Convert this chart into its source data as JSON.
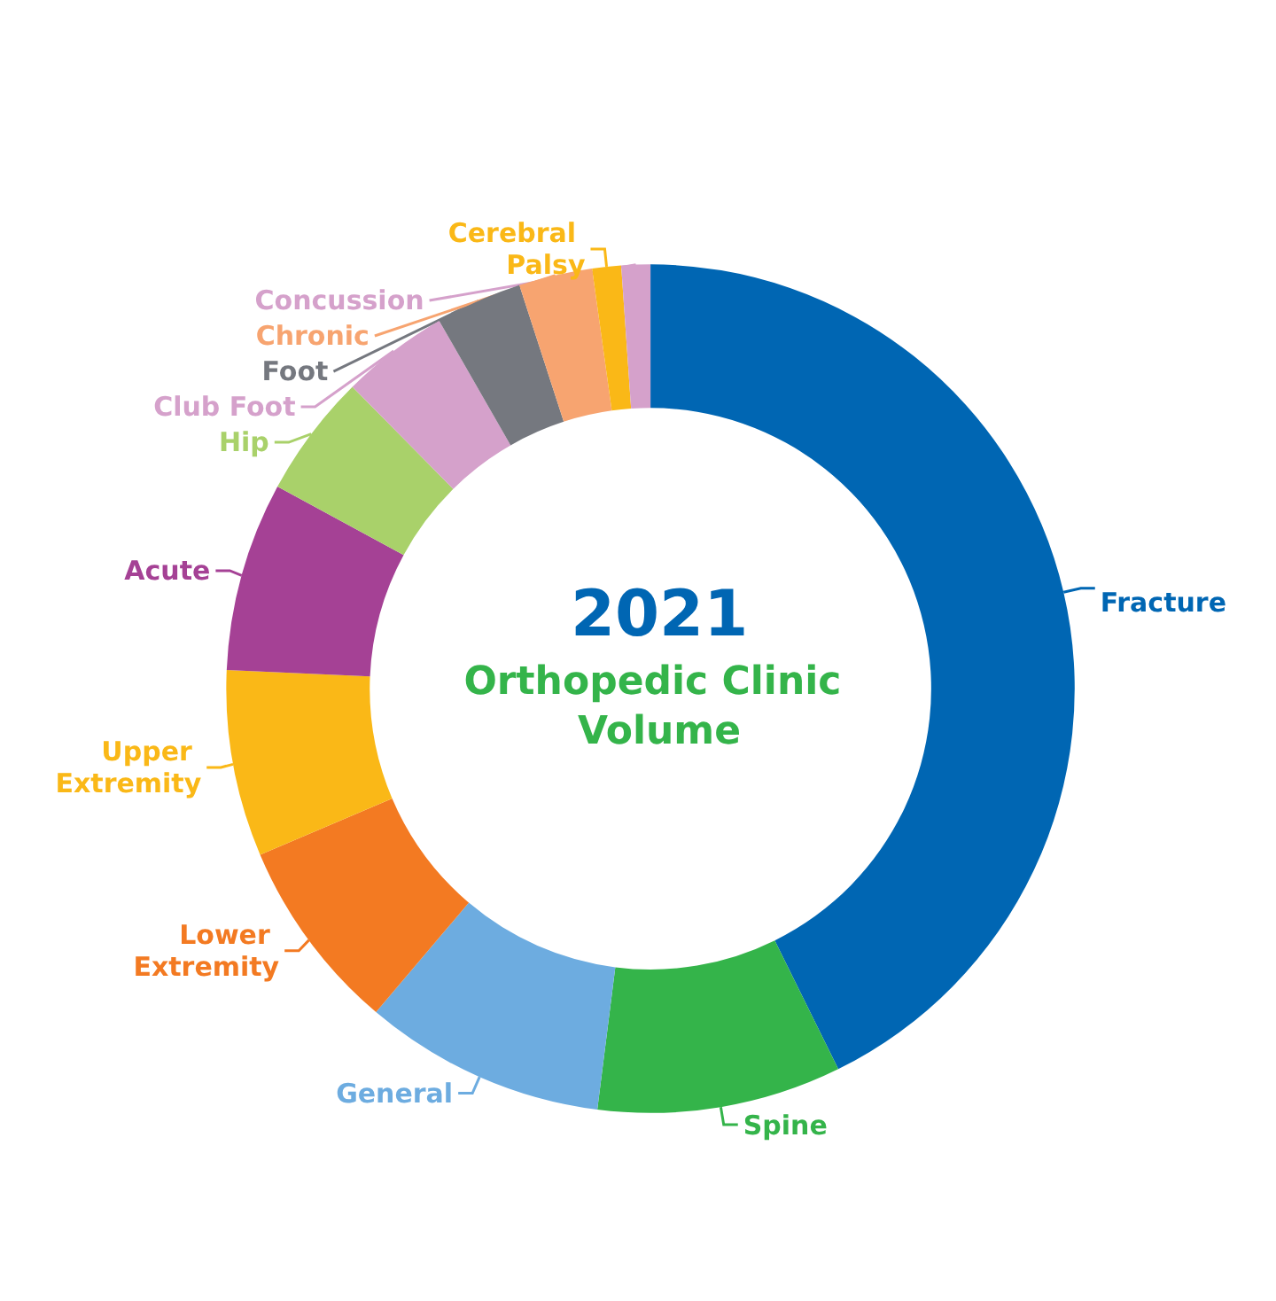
{
  "chart_data": {
    "type": "donut",
    "title": "2021",
    "subtitle": "Orthopedic Clinic Volume",
    "legend": false,
    "categories": [
      "Fracture",
      "Spine",
      "General",
      "Lower Extremity",
      "Upper Extremity",
      "Acute",
      "Hip",
      "Club Foot",
      "Foot",
      "Chronic",
      "Cerebral Palsy",
      "Concussion"
    ],
    "values": [
      42.7,
      9.3,
      9.2,
      7.4,
      7.1,
      7.2,
      4.7,
      4.1,
      3.3,
      2.8,
      1.1,
      1.1
    ],
    "colors": [
      "#0066b3",
      "#34b44a",
      "#6dace0",
      "#f37a22",
      "#fab817",
      "#a54195",
      "#a9d16a",
      "#d5a1cb",
      "#75787f",
      "#f7a470",
      "#fab817",
      "#d5a1cb"
    ]
  }
}
